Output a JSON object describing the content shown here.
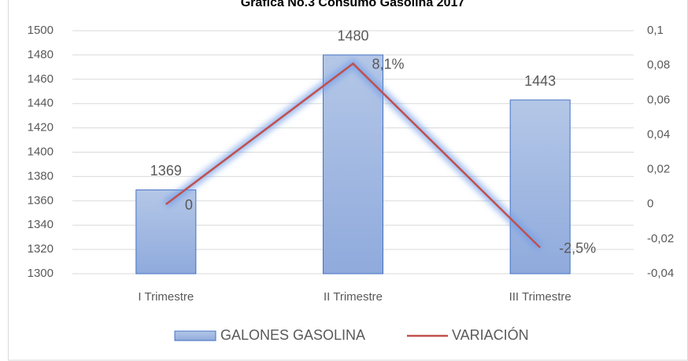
{
  "chart_data": {
    "type": "bar_line",
    "title": "Gráfica No.3 Consumo Gasolina 2017",
    "categories": [
      "I Trimestre",
      "II Trimestre",
      "III Trimestre"
    ],
    "series": [
      {
        "name": "GALONES GASOLINA",
        "color": "#8faadc",
        "values": [
          1369,
          1480,
          1443
        ]
      },
      {
        "name": "VARIACIÓN",
        "color": "#c0504d",
        "axis": "y2",
        "values": [
          0,
          0.081,
          -0.025
        ],
        "value_labels": [
          "0",
          "8,1%",
          "-2,5%"
        ]
      }
    ],
    "ylim": [
      1300,
      1500
    ],
    "yticks": [
      1300,
      1320,
      1340,
      1360,
      1380,
      1400,
      1420,
      1440,
      1460,
      1480,
      1500
    ],
    "y2lim": [
      -0.04,
      0.1
    ],
    "y2ticks": [
      {
        "value": -0.04,
        "label": "-0,04"
      },
      {
        "value": -0.02,
        "label": "-0,02"
      },
      0,
      {
        "value": 0.02,
        "label": "0,02"
      },
      {
        "value": 0.04,
        "label": "0,04"
      },
      {
        "value": 0.06,
        "label": "0,06"
      },
      {
        "value": 0.08,
        "label": "0,08"
      },
      {
        "value": 0.1,
        "label": "0,1"
      }
    ],
    "grid": true,
    "legend": "bottom"
  }
}
